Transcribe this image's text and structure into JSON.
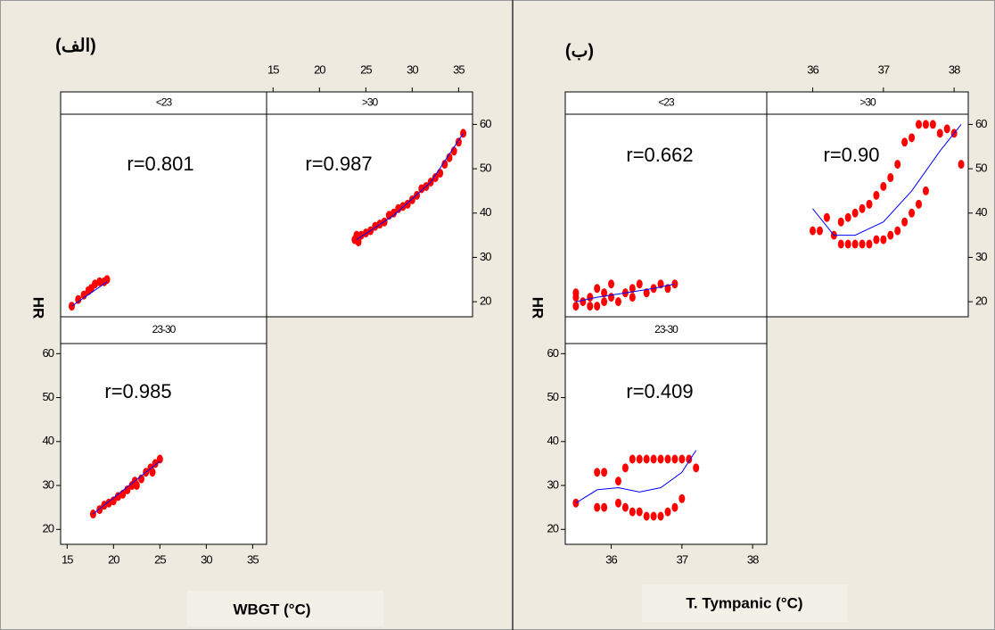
{
  "chart_data": [
    {
      "type": "scatter",
      "title": "(الف)",
      "xlabel": "WBGT (°C)",
      "ylabel": "HR",
      "xlim": [
        14.3,
        36.5
      ],
      "xticks": [
        15,
        20,
        25,
        30,
        35
      ],
      "ylim": [
        16.6,
        62.3
      ],
      "yticks": [
        20,
        30,
        40,
        50,
        60
      ],
      "point_color": "#ff0000",
      "fit_color": "#0000ff",
      "panels": [
        {
          "title": "<23",
          "annotation": "r=0.801",
          "x": [
            15.5,
            16.2,
            16.8,
            17.3,
            17.6,
            18.0,
            18.5,
            19.0,
            19.3
          ],
          "y": [
            19,
            20.5,
            21.5,
            22.5,
            23,
            24,
            24.5,
            24.5,
            25
          ],
          "fit_x": [
            15.5,
            19.3
          ],
          "fit_y": [
            19,
            24.5
          ]
        },
        {
          "title": ">30",
          "annotation": "r=0.987",
          "x": [
            23.8,
            24.0,
            24.2,
            24.5,
            25,
            25.5,
            26,
            26.5,
            27,
            27.5,
            28,
            28.5,
            29,
            29.5,
            30,
            30.5,
            31,
            31.5,
            32,
            32.5,
            33,
            33.5,
            34,
            34.5,
            35,
            35.5
          ],
          "y": [
            34,
            35,
            33.5,
            35,
            35.5,
            36,
            37,
            37.5,
            38,
            39.5,
            40,
            41,
            41.5,
            42,
            43,
            44,
            45.5,
            46,
            47,
            48,
            49,
            51,
            52.5,
            54,
            56,
            58
          ],
          "fit_x": [
            24,
            28,
            32,
            35.5
          ],
          "fit_y": [
            34,
            39.5,
            47,
            58
          ]
        },
        {
          "title": "23-30",
          "annotation": "r=0.985",
          "x": [
            17.8,
            18.5,
            19,
            19.5,
            20,
            20.5,
            21,
            21.5,
            22,
            22.3,
            22.5,
            23,
            23.5,
            24,
            24.2,
            24.5,
            25
          ],
          "y": [
            23.5,
            24.5,
            25.5,
            26,
            26.5,
            27.5,
            28,
            29,
            30,
            31,
            30,
            31.5,
            33,
            34,
            33,
            35,
            36
          ],
          "fit_x": [
            17.8,
            25
          ],
          "fit_y": [
            23.5,
            35.5
          ]
        }
      ]
    },
    {
      "type": "scatter",
      "title": "(ب)",
      "xlabel": "T. Tympanic (°C)",
      "ylabel": "HR",
      "xlim": [
        35.35,
        38.2
      ],
      "xticks": [
        36,
        37,
        38
      ],
      "ylim": [
        16.6,
        62.3
      ],
      "yticks": [
        20,
        30,
        40,
        50,
        60
      ],
      "point_color": "#ff0000",
      "fit_color": "#0000ff",
      "panels": [
        {
          "title": "<23",
          "annotation": "r=0.662",
          "x": [
            35.5,
            35.5,
            35.5,
            35.6,
            35.7,
            35.7,
            35.8,
            35.8,
            35.9,
            35.9,
            36.0,
            36.0,
            36.1,
            36.2,
            36.3,
            36.3,
            36.4,
            36.5,
            36.6,
            36.7,
            36.8,
            36.9
          ],
          "y": [
            19,
            21,
            22,
            20,
            19,
            21,
            23,
            19,
            20,
            22,
            21,
            24,
            20,
            22,
            23,
            21,
            24,
            22,
            23,
            24,
            23,
            24
          ],
          "fit_x": [
            35.5,
            35.8,
            36.2,
            36.6,
            36.9
          ],
          "fit_y": [
            20,
            21,
            22,
            23,
            24
          ]
        },
        {
          "title": ">30",
          "annotation": "r=0.90",
          "x": [
            36.0,
            36.1,
            36.2,
            36.3,
            36.4,
            36.4,
            36.5,
            36.5,
            36.6,
            36.6,
            36.7,
            36.7,
            36.8,
            36.8,
            36.9,
            36.9,
            37.0,
            37.0,
            37.1,
            37.1,
            37.2,
            37.2,
            37.3,
            37.3,
            37.4,
            37.4,
            37.5,
            37.5,
            37.6,
            37.6,
            37.7,
            37.8,
            37.9,
            38.0,
            38.1
          ],
          "y": [
            36,
            36,
            39,
            35,
            38,
            33,
            39,
            33,
            40,
            33,
            41,
            33,
            42,
            33,
            44,
            34,
            46,
            34,
            48,
            35,
            51,
            36,
            56,
            38,
            57,
            40,
            60,
            42,
            60,
            45,
            60,
            58,
            59,
            58,
            51
          ],
          "fit_x": [
            36.0,
            36.3,
            36.6,
            37.0,
            37.4,
            37.8,
            38.1
          ],
          "fit_y": [
            41,
            35,
            35,
            38,
            45,
            54,
            60
          ]
        },
        {
          "title": "23-30",
          "annotation": "r=0.409",
          "x": [
            35.5,
            35.8,
            35.8,
            35.9,
            35.9,
            36.1,
            36.1,
            36.2,
            36.2,
            36.3,
            36.3,
            36.4,
            36.4,
            36.5,
            36.5,
            36.6,
            36.6,
            36.7,
            36.7,
            36.8,
            36.8,
            36.9,
            36.9,
            37.0,
            37.0,
            37.1,
            37.2
          ],
          "y": [
            26,
            33,
            25,
            33,
            25,
            31,
            26,
            34,
            25,
            36,
            24,
            36,
            24,
            36,
            23,
            36,
            23,
            36,
            23,
            36,
            24,
            36,
            25,
            36,
            27,
            36,
            34
          ],
          "fit_x": [
            35.5,
            35.8,
            36.1,
            36.4,
            36.7,
            37.0,
            37.2
          ],
          "fit_y": [
            26,
            29,
            29.5,
            28.5,
            29.5,
            33,
            38
          ]
        }
      ]
    }
  ]
}
